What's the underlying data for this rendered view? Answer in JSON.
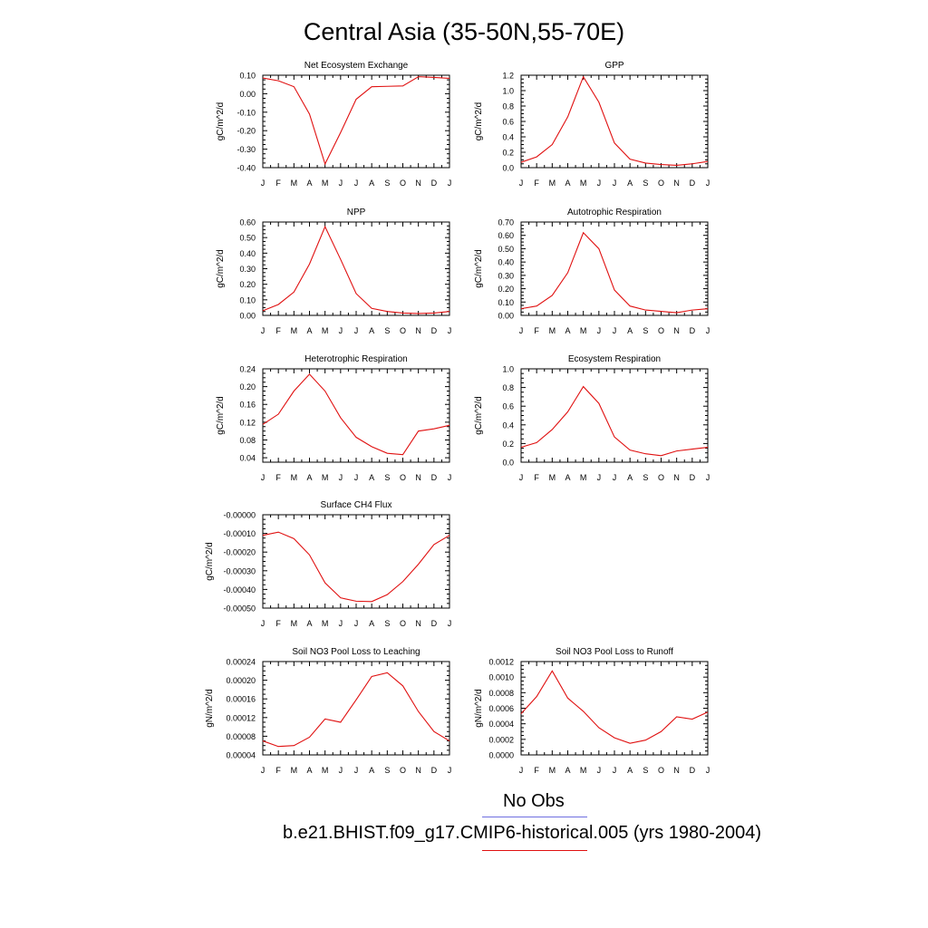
{
  "title": "Central Asia (35-50N,55-70E)",
  "legend": {
    "obs_label": "No Obs",
    "obs_color": "#6f6fe0",
    "case_label": "b.e21.BHIST.f09_g17.CMIP6-historical.005 (yrs 1980-2004)",
    "case_color": "#e01010"
  },
  "chart_data": [
    {
      "type": "line",
      "title": "Net Ecosystem Exchange",
      "ylabel": "gC/m^2/d",
      "categories": [
        "J",
        "F",
        "M",
        "A",
        "M",
        "J",
        "J",
        "A",
        "S",
        "O",
        "N",
        "D",
        "J"
      ],
      "ylim": [
        -0.4,
        0.1
      ],
      "yticks": [
        "0.10",
        "0.00",
        "-0.10",
        "-0.20",
        "-0.30",
        "-0.40"
      ],
      "ytick_values": [
        0.1,
        0.0,
        -0.1,
        -0.2,
        -0.3,
        -0.4
      ],
      "values": [
        0.085,
        0.07,
        0.038,
        -0.11,
        -0.38,
        -0.21,
        -0.03,
        0.038,
        0.04,
        0.042,
        0.092,
        0.088,
        0.083
      ]
    },
    {
      "type": "line",
      "title": "GPP",
      "ylabel": "gC/m^2/d",
      "categories": [
        "J",
        "F",
        "M",
        "A",
        "M",
        "J",
        "J",
        "A",
        "S",
        "O",
        "N",
        "D",
        "J"
      ],
      "ylim": [
        0.0,
        1.2
      ],
      "yticks": [
        "1.2",
        "1.0",
        "0.8",
        "0.6",
        "0.4",
        "0.2",
        "0.0"
      ],
      "ytick_values": [
        1.2,
        1.0,
        0.8,
        0.6,
        0.4,
        0.2,
        0.0
      ],
      "values": [
        0.07,
        0.14,
        0.3,
        0.66,
        1.18,
        0.85,
        0.32,
        0.11,
        0.06,
        0.04,
        0.03,
        0.05,
        0.08
      ]
    },
    {
      "type": "line",
      "title": "NPP",
      "ylabel": "gC/m^2/d",
      "categories": [
        "J",
        "F",
        "M",
        "A",
        "M",
        "J",
        "J",
        "A",
        "S",
        "O",
        "N",
        "D",
        "J"
      ],
      "ylim": [
        0.0,
        0.6
      ],
      "yticks": [
        "0.60",
        "0.50",
        "0.40",
        "0.30",
        "0.20",
        "0.10",
        "0.00"
      ],
      "ytick_values": [
        0.6,
        0.5,
        0.4,
        0.3,
        0.2,
        0.1,
        0.0
      ],
      "values": [
        0.03,
        0.07,
        0.15,
        0.33,
        0.57,
        0.36,
        0.14,
        0.045,
        0.025,
        0.015,
        0.012,
        0.015,
        0.025
      ]
    },
    {
      "type": "line",
      "title": "Autotrophic Respiration",
      "ylabel": "gC/m^2/d",
      "categories": [
        "J",
        "F",
        "M",
        "A",
        "M",
        "J",
        "J",
        "A",
        "S",
        "O",
        "N",
        "D",
        "J"
      ],
      "ylim": [
        0.0,
        0.7
      ],
      "yticks": [
        "0.70",
        "0.60",
        "0.50",
        "0.40",
        "0.30",
        "0.20",
        "0.10",
        "0.00"
      ],
      "ytick_values": [
        0.7,
        0.6,
        0.5,
        0.4,
        0.3,
        0.2,
        0.1,
        0.0
      ],
      "values": [
        0.05,
        0.07,
        0.15,
        0.32,
        0.62,
        0.5,
        0.19,
        0.07,
        0.04,
        0.03,
        0.02,
        0.04,
        0.05
      ]
    },
    {
      "type": "line",
      "title": "Heterotrophic Respiration",
      "ylabel": "gC/m^2/d",
      "categories": [
        "J",
        "F",
        "M",
        "A",
        "M",
        "J",
        "J",
        "A",
        "S",
        "O",
        "N",
        "D",
        "J"
      ],
      "ylim": [
        0.03,
        0.24
      ],
      "yticks": [
        "0.24",
        "0.20",
        "0.16",
        "0.12",
        "0.08",
        "0.04"
      ],
      "ytick_values": [
        0.24,
        0.2,
        0.16,
        0.12,
        0.08,
        0.04
      ],
      "values": [
        0.115,
        0.138,
        0.19,
        0.228,
        0.19,
        0.13,
        0.086,
        0.065,
        0.05,
        0.047,
        0.1,
        0.105,
        0.113
      ]
    },
    {
      "type": "line",
      "title": "Ecosystem Respiration",
      "ylabel": "gC/m^2/d",
      "categories": [
        "J",
        "F",
        "M",
        "A",
        "M",
        "J",
        "J",
        "A",
        "S",
        "O",
        "N",
        "D",
        "J"
      ],
      "ylim": [
        0.0,
        1.0
      ],
      "yticks": [
        "1.0",
        "0.8",
        "0.6",
        "0.4",
        "0.2",
        "0.0"
      ],
      "ytick_values": [
        1.0,
        0.8,
        0.6,
        0.4,
        0.2,
        0.0
      ],
      "values": [
        0.16,
        0.21,
        0.35,
        0.54,
        0.81,
        0.63,
        0.27,
        0.13,
        0.09,
        0.07,
        0.12,
        0.14,
        0.16
      ]
    },
    {
      "type": "line",
      "title": "Surface CH4 Flux",
      "ylabel": "gC/m^2/d",
      "categories": [
        "J",
        "F",
        "M",
        "A",
        "M",
        "J",
        "J",
        "A",
        "S",
        "O",
        "N",
        "D",
        "J"
      ],
      "ylim": [
        -0.0005,
        0.0
      ],
      "yticks": [
        "-0.00000",
        "-0.00010",
        "-0.00020",
        "-0.00030",
        "-0.00040",
        "-0.00050"
      ],
      "ytick_values": [
        0.0,
        -0.0001,
        -0.0002,
        -0.0003,
        -0.0004,
        -0.0005
      ],
      "values": [
        -0.00011,
        -9.3e-05,
        -0.000128,
        -0.000215,
        -0.000365,
        -0.000445,
        -0.000463,
        -0.000465,
        -0.000428,
        -0.000358,
        -0.000265,
        -0.00016,
        -0.00011
      ]
    },
    {
      "type": "line",
      "title": "Soil NO3 Pool Loss to Leaching",
      "ylabel": "gN/m^2/d",
      "categories": [
        "J",
        "F",
        "M",
        "A",
        "M",
        "J",
        "J",
        "A",
        "S",
        "O",
        "N",
        "D",
        "J"
      ],
      "ylim": [
        4e-05,
        0.00024
      ],
      "yticks": [
        "0.00024",
        "0.00020",
        "0.00016",
        "0.00012",
        "0.00008",
        "0.00004"
      ],
      "ytick_values": [
        0.00024,
        0.0002,
        0.00016,
        0.00012,
        8e-05,
        4e-05
      ],
      "values": [
        7e-05,
        5.8e-05,
        6e-05,
        7.8e-05,
        0.000117,
        0.00011,
        0.000158,
        0.000208,
        0.000216,
        0.000188,
        0.000133,
        9e-05,
        7e-05
      ]
    },
    {
      "type": "line",
      "title": "Soil NO3 Pool Loss to Runoff",
      "ylabel": "gN/m^2/d",
      "categories": [
        "J",
        "F",
        "M",
        "A",
        "M",
        "J",
        "J",
        "A",
        "S",
        "O",
        "N",
        "D",
        "J"
      ],
      "ylim": [
        0.0,
        0.0012
      ],
      "yticks": [
        "0.0012",
        "0.0010",
        "0.0008",
        "0.0006",
        "0.0004",
        "0.0002",
        "0.0000"
      ],
      "ytick_values": [
        0.0012,
        0.001,
        0.0008,
        0.0006,
        0.0004,
        0.0002,
        0.0
      ],
      "values": [
        0.00053,
        0.00075,
        0.00108,
        0.00073,
        0.00056,
        0.00035,
        0.00022,
        0.00015,
        0.00019,
        0.0003,
        0.00049,
        0.00046,
        0.00055
      ]
    }
  ]
}
